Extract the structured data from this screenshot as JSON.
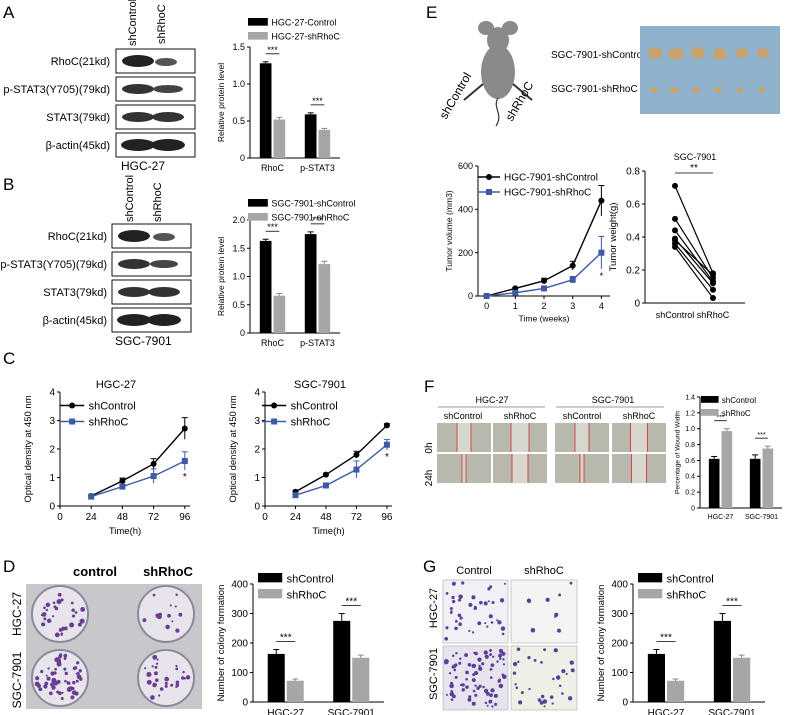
{
  "panels": {
    "A": {
      "letter": "A",
      "lanes": [
        "shControl",
        "shRhoC"
      ],
      "blots": [
        "RhoC(21kd)",
        "p-STAT3(Y705)(79kd)",
        "STAT3(79kd)",
        "β-actin(45kd)"
      ],
      "cell_line": "HGC-27"
    },
    "B": {
      "letter": "B",
      "lanes": [
        "shControl",
        "shRhoC"
      ],
      "blots": [
        "RhoC(21kd)",
        "p-STAT3(Y705)(79kd)",
        "STAT3(79kd)",
        "β-actin(45kd)"
      ],
      "cell_line": "SGC-7901"
    },
    "C": {
      "letter": "C"
    },
    "D": {
      "letter": "D",
      "col_labels": [
        "control",
        "shRhoC"
      ],
      "row_labels": [
        "HGC-27",
        "SGC-7901"
      ]
    },
    "E": {
      "letter": "E",
      "mouse_labels": [
        "shControl",
        "shRhoC"
      ],
      "tumor_rows": [
        "SGC-7901-shControl",
        "SGC-7901-shRhoC"
      ]
    },
    "F": {
      "letter": "F",
      "groups": [
        "HGC-27",
        "SGC-7901"
      ],
      "cols": [
        "shControl",
        "shRhoC",
        "shControl",
        "shRhoC"
      ],
      "rows": [
        "0h",
        "24h"
      ]
    },
    "G": {
      "letter": "G",
      "col_labels": [
        "Control",
        "shRhoC"
      ],
      "row_labels": [
        "HGC-27",
        "SGC-7901"
      ]
    }
  },
  "chart_data": [
    {
      "id": "A_bar",
      "type": "bar",
      "categories": [
        "RhoC",
        "p-STAT3"
      ],
      "series": [
        {
          "name": "HGC-27-Control",
          "values": [
            1.28,
            0.59
          ]
        },
        {
          "name": "HGC-27-shRhoC",
          "values": [
            0.52,
            0.38
          ]
        }
      ],
      "errors": [
        [
          0.02,
          0.02
        ],
        [
          0.03,
          0.02
        ]
      ],
      "ylabel": "Relative protein level",
      "ylim": [
        0,
        1.5
      ],
      "yticks": [
        0,
        0.5,
        1.0,
        1.5
      ],
      "yticklabels": [
        "0",
        "0.5",
        "1.0",
        "1.5"
      ],
      "sig": [
        "***",
        "***"
      ],
      "legend": "top"
    },
    {
      "id": "B_bar",
      "type": "bar",
      "categories": [
        "RhoC",
        "p-STAT3"
      ],
      "series": [
        {
          "name": "SGC-7901-shControl",
          "values": [
            1.63,
            1.75
          ]
        },
        {
          "name": "SGC-7901-shRhoC",
          "values": [
            0.66,
            1.22
          ]
        }
      ],
      "errors": [
        [
          0.03,
          0.04
        ],
        [
          0.04,
          0.05
        ]
      ],
      "ylabel": "Relative protein level",
      "ylim": [
        0,
        2.0
      ],
      "yticks": [
        0,
        0.5,
        1.0,
        1.5,
        2.0
      ],
      "yticklabels": [
        "0",
        "0.5",
        "1.0",
        "1.5",
        "2.0"
      ],
      "sig": [
        "***",
        "***"
      ],
      "legend": "top"
    },
    {
      "id": "C_hgc",
      "type": "line",
      "title": "HGC-27",
      "x": [
        24,
        48,
        72,
        96
      ],
      "series": [
        {
          "name": "shControl",
          "values": [
            0.35,
            0.88,
            1.48,
            2.72
          ]
        },
        {
          "name": "shRhoC",
          "values": [
            0.33,
            0.68,
            1.05,
            1.58
          ]
        }
      ],
      "errors": [
        [
          0.03,
          0.1,
          0.18,
          0.38
        ],
        [
          0.03,
          0.08,
          0.25,
          0.32
        ]
      ],
      "xlabel": "Time(h)",
      "ylabel": "Optical density at 450 nm",
      "xlim": [
        0,
        100
      ],
      "xticks": [
        0,
        24,
        48,
        72,
        96
      ],
      "ylim": [
        0,
        4
      ],
      "yticks": [
        0,
        1,
        2,
        3,
        4
      ],
      "yticklabels": [
        "0",
        "1",
        "2",
        "3",
        "4"
      ],
      "sig_mark": "*",
      "legend": "top-left"
    },
    {
      "id": "C_sgc",
      "type": "line",
      "title": "SGC-7901",
      "x": [
        24,
        48,
        72,
        96
      ],
      "series": [
        {
          "name": "shControl",
          "values": [
            0.5,
            1.1,
            1.8,
            2.83
          ]
        },
        {
          "name": "shRhoC",
          "values": [
            0.38,
            0.72,
            1.28,
            2.15
          ]
        }
      ],
      "errors": [
        [
          0.03,
          0.05,
          0.12,
          0.06
        ],
        [
          0.03,
          0.06,
          0.3,
          0.18
        ]
      ],
      "xlabel": "Time(h)",
      "ylabel": "Optical density at 450 nm",
      "xlim": [
        0,
        100
      ],
      "xticks": [
        0,
        24,
        48,
        72,
        96
      ],
      "ylim": [
        0,
        4
      ],
      "yticks": [
        0,
        1,
        2,
        3,
        4
      ],
      "yticklabels": [
        "0",
        "1",
        "2",
        "3",
        "4"
      ],
      "sig_mark": "*",
      "legend": "top-left"
    },
    {
      "id": "E_volume",
      "type": "line",
      "x": [
        0,
        1,
        2,
        3,
        4
      ],
      "series": [
        {
          "name": "HGC-7901-shControl",
          "values": [
            0,
            35,
            70,
            140,
            440
          ]
        },
        {
          "name": "HGC-7901-shRhoC",
          "values": [
            0,
            15,
            35,
            75,
            200
          ]
        }
      ],
      "errors": [
        [
          0,
          5,
          12,
          20,
          70
        ],
        [
          0,
          4,
          10,
          15,
          75
        ]
      ],
      "xlabel": "Time (weeks)",
      "ylabel": "Tumor volume (mm3)",
      "xlim": [
        -0.3,
        4.3
      ],
      "xticks": [
        0,
        1,
        2,
        3,
        4
      ],
      "ylim": [
        0,
        600
      ],
      "yticks": [
        0,
        200,
        400,
        600
      ],
      "yticklabels": [
        "0",
        "200",
        "400",
        "600"
      ],
      "sig_mark": "*",
      "legend": "top-left"
    },
    {
      "id": "E_weight",
      "type": "scatter",
      "title": "SGC-7901",
      "categories": [
        "shControl",
        "shRhoC"
      ],
      "pairs": [
        [
          0.71,
          0.18
        ],
        [
          0.51,
          0.15
        ],
        [
          0.44,
          0.13
        ],
        [
          0.39,
          0.12
        ],
        [
          0.38,
          0.17
        ],
        [
          0.36,
          0.08
        ],
        [
          0.34,
          0.03
        ]
      ],
      "ylabel": "Tumor weight(g)",
      "ylim": [
        0,
        0.8
      ],
      "yticks": [
        0,
        0.2,
        0.4,
        0.6,
        0.8
      ],
      "yticklabels": [
        "0",
        "0.2",
        "0.4",
        "0.6",
        "0.8"
      ],
      "sig": "**"
    },
    {
      "id": "F_bar",
      "type": "bar",
      "categories": [
        "HGC-27",
        "SGC-7901"
      ],
      "series": [
        {
          "name": "shControl",
          "values": [
            0.62,
            0.62
          ]
        },
        {
          "name": "shRhoC",
          "values": [
            0.97,
            0.75
          ]
        }
      ],
      "errors": [
        [
          0.03,
          0.05
        ],
        [
          0.03,
          0.03
        ]
      ],
      "ylabel": "Percentage of Wound Width",
      "ylim": [
        0,
        1.4
      ],
      "yticks": [
        0,
        0.2,
        0.4,
        0.6,
        0.8,
        1.0,
        1.2,
        1.4
      ],
      "yticklabels": [
        "0",
        "0.2",
        "0.4",
        "0.6",
        "0.8",
        "1.0",
        "1.2",
        "1.4"
      ],
      "sig": [
        "***",
        "***"
      ],
      "legend": "top-left"
    },
    {
      "id": "D_bar",
      "type": "bar",
      "categories": [
        "HGC-27",
        "SGC-7901"
      ],
      "series": [
        {
          "name": "shControl",
          "values": [
            163,
            275
          ]
        },
        {
          "name": "shRhoC",
          "values": [
            72,
            150
          ]
        }
      ],
      "errors": [
        [
          15,
          25
        ],
        [
          6,
          9
        ]
      ],
      "ylabel": "Number of colony formation",
      "ylim": [
        0,
        400
      ],
      "yticks": [
        0,
        100,
        200,
        300,
        400
      ],
      "yticklabels": [
        "0",
        "100",
        "200",
        "300",
        "400"
      ],
      "sig": [
        "***",
        "***"
      ],
      "legend": "top-left"
    },
    {
      "id": "G_bar",
      "type": "bar",
      "categories": [
        "HGC-27",
        "SGC-7901"
      ],
      "series": [
        {
          "name": "shControl",
          "values": [
            163,
            275
          ]
        },
        {
          "name": "shRhoC",
          "values": [
            72,
            150
          ]
        }
      ],
      "errors": [
        [
          15,
          25
        ],
        [
          6,
          9
        ]
      ],
      "ylabel": "Number of colony formation",
      "ylim": [
        0,
        400
      ],
      "yticks": [
        0,
        100,
        200,
        300,
        400
      ],
      "yticklabels": [
        "0",
        "100",
        "200",
        "300",
        "400"
      ],
      "sig": [
        "***",
        "***"
      ],
      "legend": "top-left"
    }
  ]
}
